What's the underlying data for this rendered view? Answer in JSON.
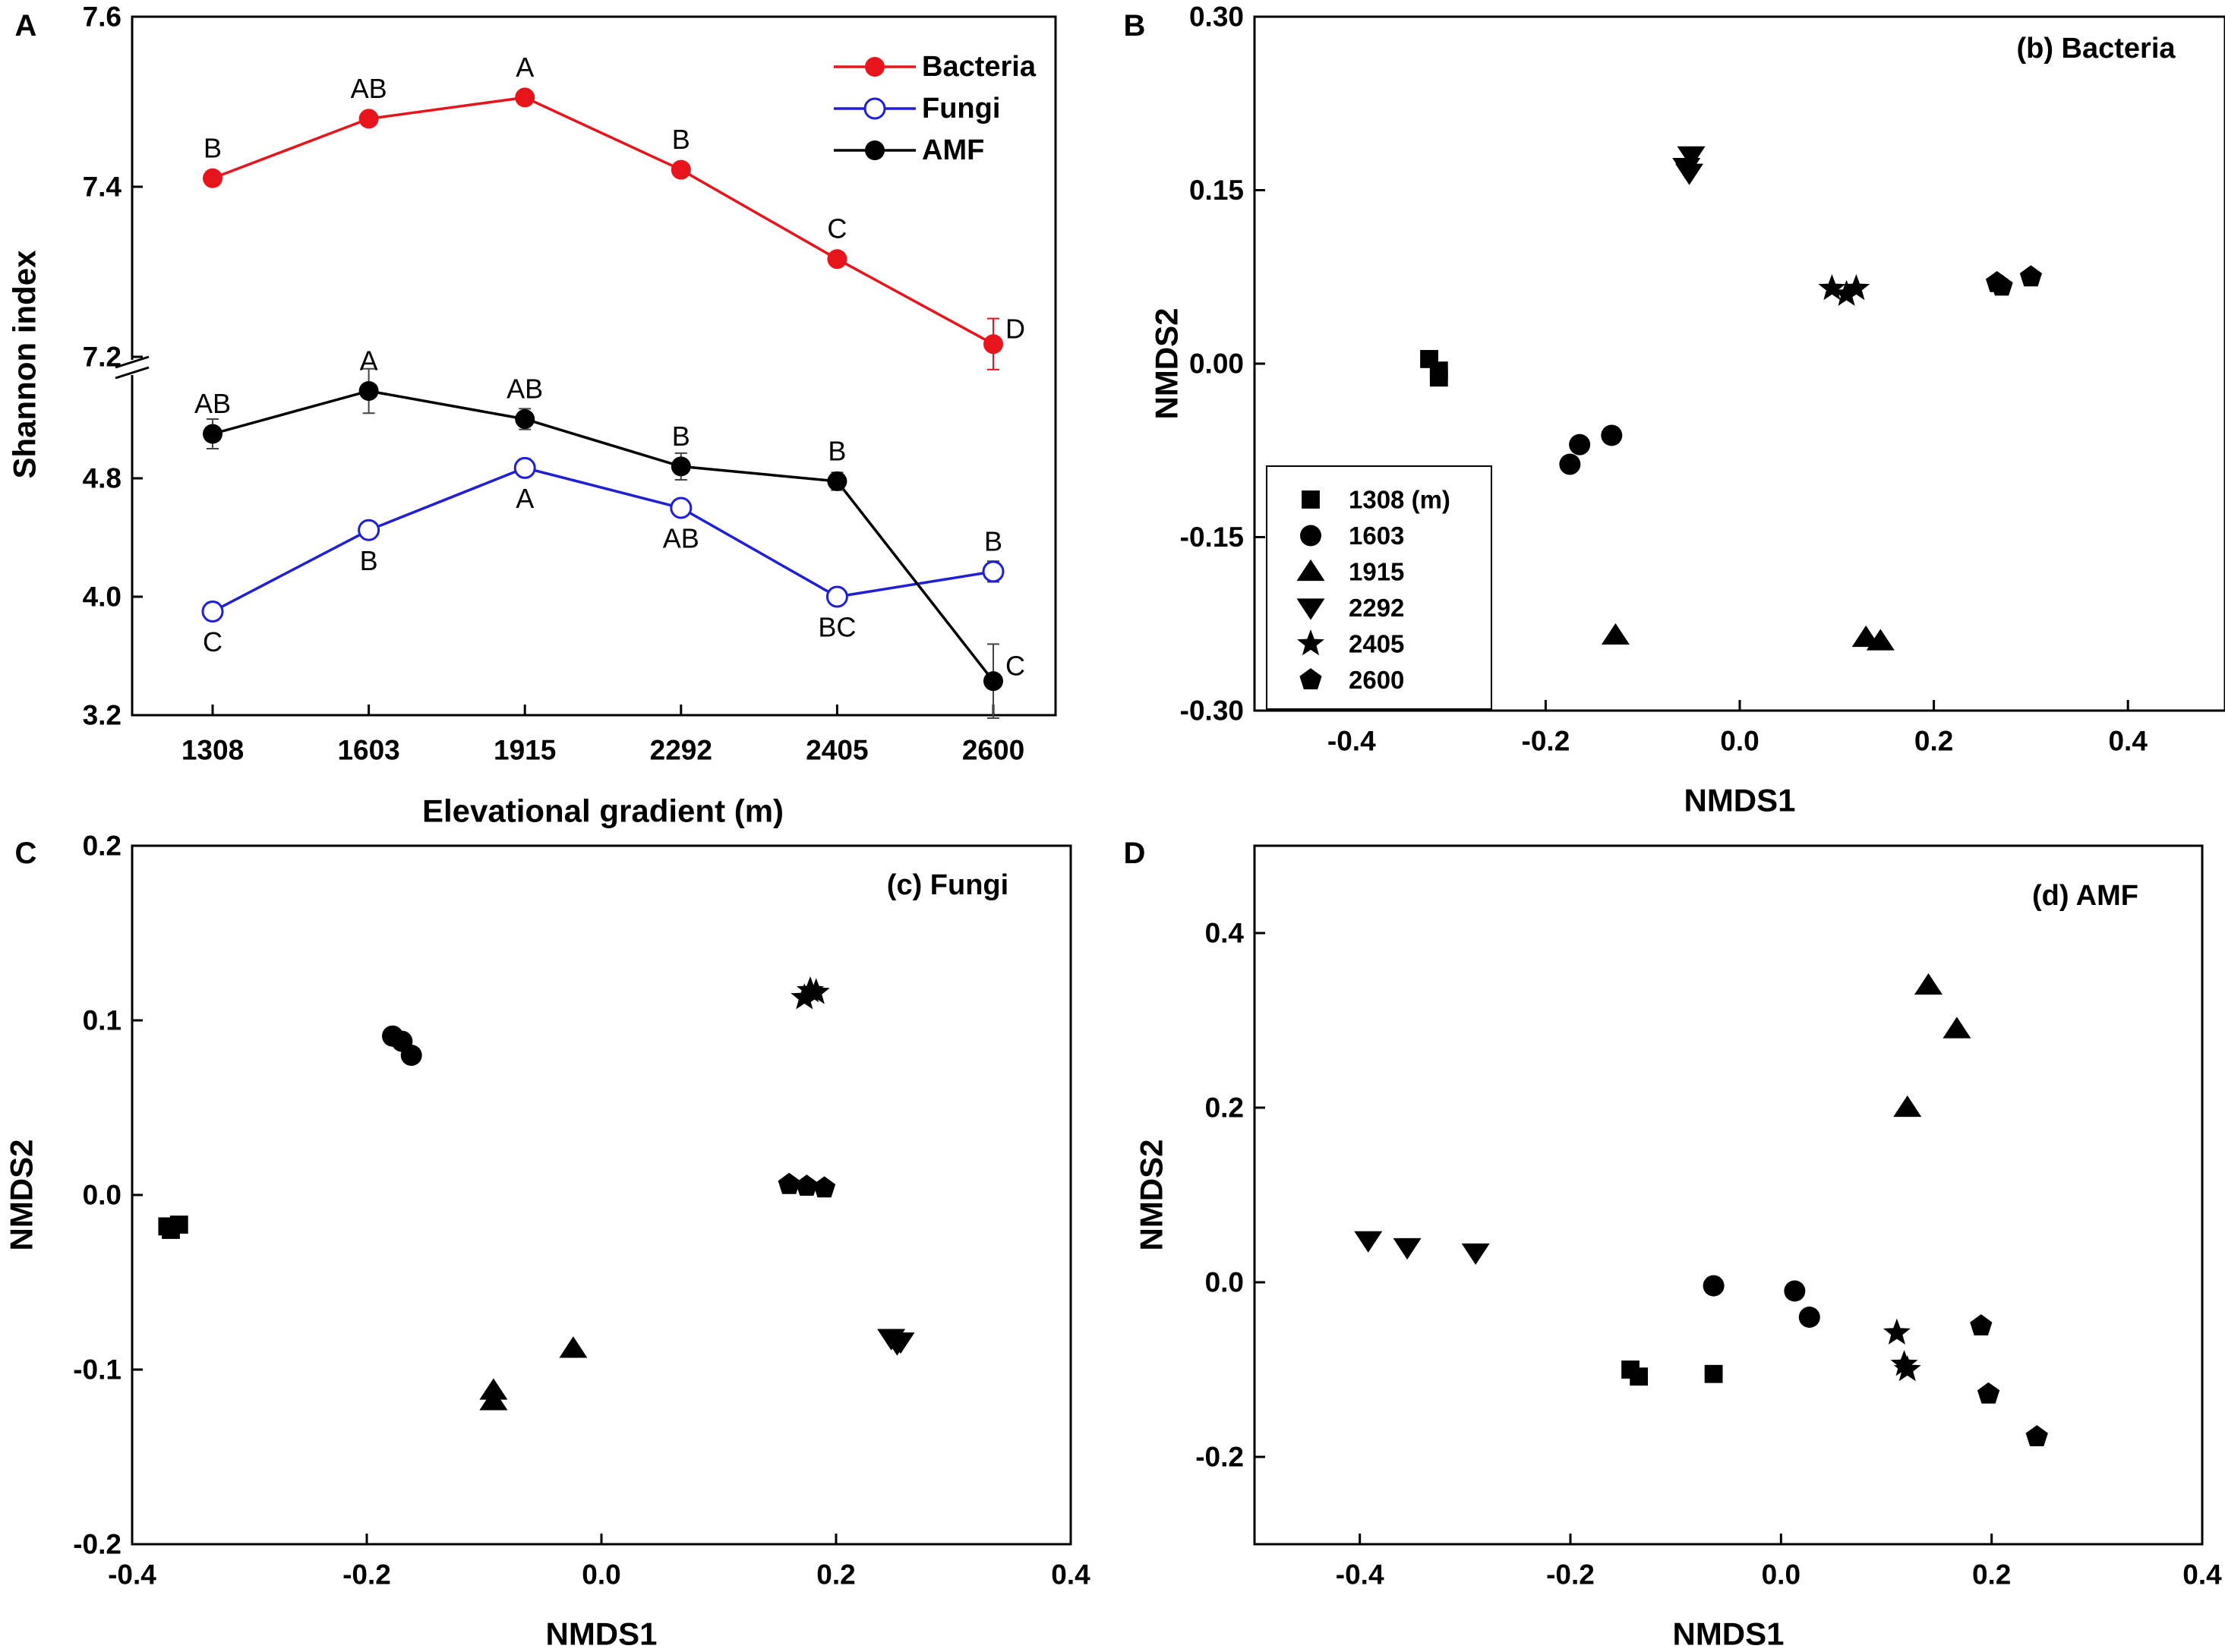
{
  "colors": {
    "ink": "#000000",
    "bacteria": "#e8141c",
    "fungi": "#1f1fd6",
    "amf": "#000000"
  },
  "chart_data": [
    {
      "panel_letter": "A",
      "type": "line",
      "xlabel": "Elevational gradient (m)",
      "ylabel": "Shannon index",
      "categories": [
        "1308",
        "1603",
        "1915",
        "2292",
        "2405",
        "2600"
      ],
      "upper_axis": {
        "ylim": [
          7.2,
          7.6
        ],
        "ticks": [
          "7.2",
          "7.4",
          "7.6"
        ]
      },
      "lower_axis": {
        "ylim": [
          3.2,
          5.6
        ],
        "ticks": [
          "3.2",
          "4.0",
          "4.8"
        ]
      },
      "series": [
        {
          "name": "Bacteria",
          "axis": "upper",
          "color": "#e8141c",
          "marker": "filled-circle",
          "values": [
            7.41,
            7.48,
            7.505,
            7.42,
            7.315,
            7.215
          ],
          "errors": [
            0,
            0,
            0,
            0,
            0,
            0.03
          ],
          "letters": [
            "B",
            "AB",
            "A",
            "B",
            "C",
            "D"
          ],
          "letter_pos": [
            "above",
            "above",
            "above",
            "above",
            "above",
            "right"
          ]
        },
        {
          "name": "Fungi",
          "axis": "lower",
          "color": "#1f1fd6",
          "marker": "open-circle",
          "values": [
            3.9,
            4.45,
            4.87,
            4.6,
            4.0,
            4.17
          ],
          "errors": [
            0.06,
            0.05,
            0.06,
            0.05,
            0.04,
            0.07
          ],
          "letters": [
            "C",
            "B",
            "A",
            "AB",
            "BC",
            "B"
          ],
          "letter_pos": [
            "below",
            "below",
            "below",
            "below",
            "below",
            "above"
          ]
        },
        {
          "name": "AMF",
          "axis": "lower",
          "color": "#000000",
          "marker": "filled-circle",
          "values": [
            5.1,
            5.39,
            5.2,
            4.88,
            4.78,
            3.43
          ],
          "errors": [
            0.1,
            0.15,
            0.07,
            0.09,
            0.06,
            0.25
          ],
          "letters": [
            "AB",
            "A",
            "AB",
            "B",
            "B",
            "C"
          ],
          "letter_pos": [
            "above",
            "above",
            "above",
            "above",
            "above",
            "right"
          ]
        }
      ]
    },
    {
      "panel_letter": "B",
      "type": "scatter",
      "title": "(b) Bacteria",
      "xlabel": "NMDS1",
      "ylabel": "NMDS2",
      "xlim": [
        -0.5,
        0.5
      ],
      "ylim": [
        -0.3,
        0.3
      ],
      "xticks": [
        "-0.4",
        "-0.2",
        "0.0",
        "0.2",
        "0.4"
      ],
      "yticks": [
        "-0.30",
        "-0.15",
        "0.00",
        "0.15",
        "0.30"
      ],
      "legend": {
        "position": "bottom-left",
        "entries": [
          {
            "label": "1308 (m)",
            "marker": "square"
          },
          {
            "label": "1603",
            "marker": "circle"
          },
          {
            "label": "1915",
            "marker": "triangle-up"
          },
          {
            "label": "2292",
            "marker": "triangle-down"
          },
          {
            "label": "2405",
            "marker": "star"
          },
          {
            "label": "2600",
            "marker": "pentagon"
          }
        ]
      },
      "groups": [
        {
          "name": "1308",
          "marker": "square",
          "points": [
            [
              -0.32,
              0.004
            ],
            [
              -0.31,
              -0.006
            ],
            [
              -0.31,
              -0.012
            ]
          ]
        },
        {
          "name": "1603",
          "marker": "circle",
          "points": [
            [
              -0.175,
              -0.087
            ],
            [
              -0.165,
              -0.07
            ],
            [
              -0.132,
              -0.062
            ]
          ]
        },
        {
          "name": "1915",
          "marker": "triangle-up",
          "points": [
            [
              -0.128,
              -0.235
            ],
            [
              0.13,
              -0.237
            ],
            [
              0.145,
              -0.24
            ]
          ]
        },
        {
          "name": "2292",
          "marker": "triangle-down",
          "points": [
            [
              -0.05,
              0.18
            ],
            [
              -0.055,
              0.17
            ],
            [
              -0.052,
              0.165
            ]
          ]
        },
        {
          "name": "2405",
          "marker": "star",
          "points": [
            [
              0.095,
              0.065
            ],
            [
              0.11,
              0.06
            ],
            [
              0.12,
              0.065
            ]
          ]
        },
        {
          "name": "2600",
          "marker": "pentagon",
          "points": [
            [
              0.265,
              0.07
            ],
            [
              0.27,
              0.067
            ],
            [
              0.3,
              0.075
            ]
          ]
        }
      ]
    },
    {
      "panel_letter": "C",
      "type": "scatter",
      "title": "(c) Fungi",
      "xlabel": "NMDS1",
      "ylabel": "NMDS2",
      "xlim": [
        -0.4,
        0.4
      ],
      "ylim": [
        -0.2,
        0.2
      ],
      "xticks": [
        "-0.4",
        "-0.2",
        "0.0",
        "0.2",
        "0.4"
      ],
      "yticks": [
        "-0.2",
        "-0.1",
        "0.0",
        "0.1",
        "0.2"
      ],
      "groups": [
        {
          "name": "1308",
          "marker": "square",
          "points": [
            [
              -0.37,
              -0.018
            ],
            [
              -0.36,
              -0.017
            ],
            [
              -0.367,
              -0.02
            ]
          ]
        },
        {
          "name": "1603",
          "marker": "circle",
          "points": [
            [
              -0.178,
              0.091
            ],
            [
              -0.17,
              0.088
            ],
            [
              -0.162,
              0.08
            ]
          ]
        },
        {
          "name": "1915",
          "marker": "triangle-up",
          "points": [
            [
              -0.092,
              -0.112
            ],
            [
              -0.092,
              -0.118
            ],
            [
              -0.024,
              -0.088
            ]
          ]
        },
        {
          "name": "2292",
          "marker": "triangle-down",
          "points": [
            [
              0.247,
              -0.082
            ],
            [
              0.252,
              -0.085
            ],
            [
              0.255,
              -0.084
            ]
          ]
        },
        {
          "name": "2405",
          "marker": "star",
          "points": [
            [
              0.173,
              0.113
            ],
            [
              0.178,
              0.117
            ],
            [
              0.183,
              0.116
            ]
          ]
        },
        {
          "name": "2600",
          "marker": "pentagon",
          "points": [
            [
              0.16,
              0.006
            ],
            [
              0.175,
              0.005
            ],
            [
              0.19,
              0.004
            ]
          ]
        }
      ]
    },
    {
      "panel_letter": "D",
      "type": "scatter",
      "title": "(d) AMF",
      "xlabel": "NMDS1",
      "ylabel": "NMDS2",
      "xlim": [
        -0.5,
        0.4
      ],
      "ylim": [
        -0.3,
        0.5
      ],
      "xticks": [
        "-0.4",
        "-0.2",
        "0.0",
        "0.2",
        "0.4"
      ],
      "yticks": [
        "-0.2",
        "0.0",
        "0.2",
        "0.4"
      ],
      "groups": [
        {
          "name": "1308",
          "marker": "square",
          "points": [
            [
              -0.143,
              -0.1
            ],
            [
              -0.135,
              -0.108
            ],
            [
              -0.064,
              -0.105
            ]
          ]
        },
        {
          "name": "1603",
          "marker": "circle",
          "points": [
            [
              -0.064,
              -0.004
            ],
            [
              0.013,
              -0.01
            ],
            [
              0.027,
              -0.04
            ]
          ]
        },
        {
          "name": "1915",
          "marker": "triangle-up",
          "points": [
            [
              0.14,
              0.34
            ],
            [
              0.167,
              0.29
            ],
            [
              0.12,
              0.2
            ]
          ]
        },
        {
          "name": "2292",
          "marker": "triangle-down",
          "points": [
            [
              -0.392,
              0.048
            ],
            [
              -0.355,
              0.04
            ],
            [
              -0.29,
              0.034
            ]
          ]
        },
        {
          "name": "2405",
          "marker": "star",
          "points": [
            [
              0.11,
              -0.058
            ],
            [
              0.117,
              -0.094
            ],
            [
              0.12,
              -0.1
            ]
          ]
        },
        {
          "name": "2600",
          "marker": "pentagon",
          "points": [
            [
              0.19,
              -0.05
            ],
            [
              0.197,
              -0.128
            ],
            [
              0.243,
              -0.177
            ]
          ]
        }
      ]
    }
  ]
}
